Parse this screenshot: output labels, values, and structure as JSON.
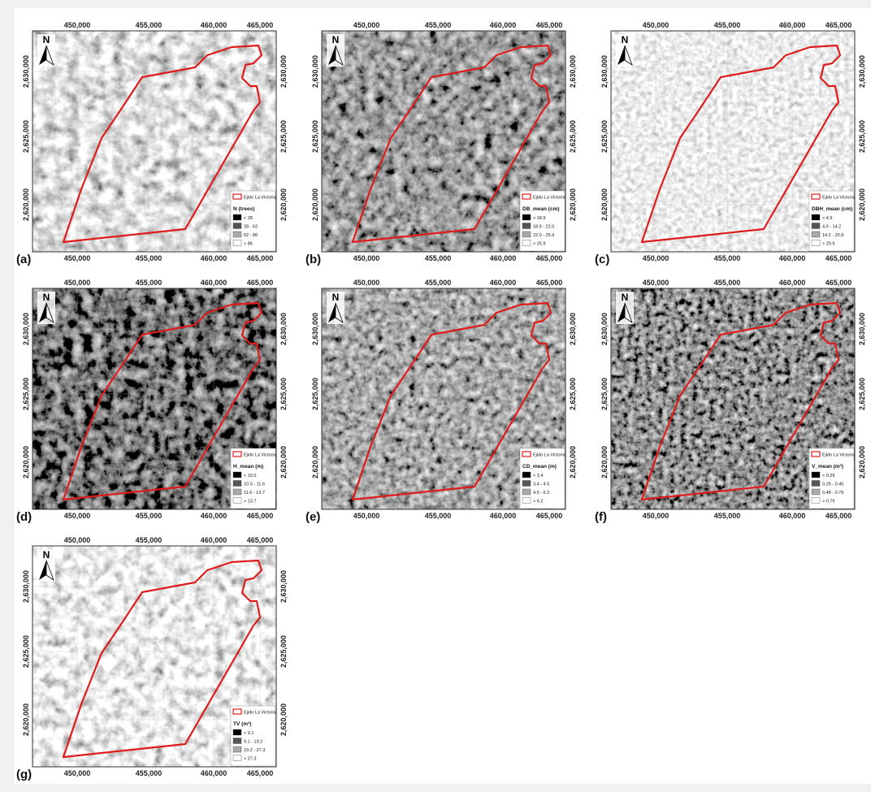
{
  "axes": {
    "x_ticks": [
      "450,000",
      "455,000",
      "460,000",
      "465,000"
    ],
    "y_ticks": [
      "2,630,000",
      "2,625,000",
      "2,620,000"
    ]
  },
  "north": "N",
  "boundary_label": "Ejido La Victoria",
  "panels": [
    {
      "label": "(a)",
      "legend_title": "N (trees)",
      "classes": [
        "< 28",
        "28 - 62",
        "62 - 86",
        "> 86"
      ]
    },
    {
      "label": "(b)",
      "legend_title": "DB_mean (cm)",
      "classes": [
        "< 18.9",
        "18.9 - 22.0",
        "22.0 - 25.9",
        "> 25.9"
      ]
    },
    {
      "label": "(c)",
      "legend_title": "DBH_mean (cm)",
      "classes": [
        "< 4.9",
        "4.9 - 14.2",
        "14.2 - 20.9",
        "> 20.9"
      ]
    },
    {
      "label": "(d)",
      "legend_title": "H_mean (m)",
      "classes": [
        "< 10.0",
        "10.0 - 11.6",
        "11.6 - 13.7",
        "> 13.7"
      ]
    },
    {
      "label": "(e)",
      "legend_title": "CD_mean (m)",
      "classes": [
        "< 3.4",
        "3.4 - 4.5",
        "4.5 - 6.2",
        "> 6.2"
      ]
    },
    {
      "label": "(f)",
      "legend_title": "V_mean (m³)",
      "classes": [
        "< 0.29",
        "0.29 - 0.45",
        "0.45 - 0.79",
        "> 0.79"
      ]
    },
    {
      "label": "(g)",
      "legend_title": "TV (m³)",
      "classes": [
        "< 9.1",
        "9.1 - 19.2",
        "19.2 - 27.3",
        "> 27.3"
      ]
    }
  ]
}
